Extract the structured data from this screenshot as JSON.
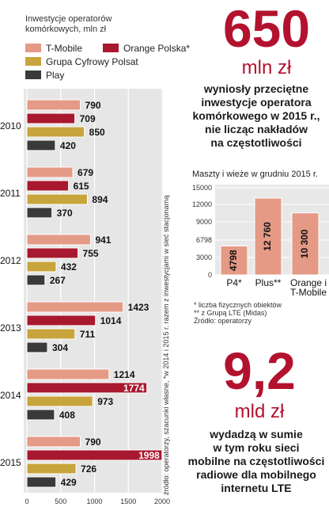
{
  "chart_data": [
    {
      "type": "bar",
      "title": "Inwestycje operatorów komórkowych, mln zł",
      "categories": [
        "2010",
        "2011",
        "2012",
        "2013",
        "2014",
        "2015"
      ],
      "series": [
        {
          "name": "T-Mobile",
          "values": [
            790,
            679,
            941,
            1423,
            1214,
            790
          ]
        },
        {
          "name": "Orange Polska*",
          "values": [
            709,
            615,
            755,
            1014,
            1774,
            1998
          ]
        },
        {
          "name": "Grupa Cyfrowy Polsat",
          "values": [
            850,
            894,
            432,
            711,
            973,
            726
          ]
        },
        {
          "name": "Play",
          "values": [
            420,
            370,
            267,
            304,
            408,
            429
          ]
        }
      ],
      "xlim": [
        0,
        2000
      ],
      "x_ticks": [
        "0",
        "500",
        "1000",
        "1500",
        "2000"
      ],
      "colors": [
        "#e59a86",
        "#a8182f",
        "#c8a43c",
        "#3a3a3a"
      ],
      "legend": "top-left"
    },
    {
      "type": "bar",
      "title": "Maszty i wieże w grudniu 2015 r.",
      "categories": [
        "P4*",
        "Plus**",
        "Orange i T-Mobile"
      ],
      "values": [
        4798,
        12760,
        10300
      ],
      "value_labels": [
        "4798",
        "12 760",
        "10 300"
      ],
      "ylim": [
        0,
        15000
      ],
      "y_ticks": [
        "15000",
        "12000",
        "9000",
        "6798",
        "3000",
        "0"
      ],
      "color": "#e59a86"
    }
  ],
  "highlight1": {
    "number": "650",
    "unit": "mln zł",
    "line1": "wyniosły przeciętne",
    "line2": "inwestycje operatora",
    "line3": "komórkowego w 2015 r.,",
    "line4": "nie licząc nakładów",
    "line5": "na częstotliwości"
  },
  "footnotes": {
    "f1": "* liczba fizycznych obiektów",
    "f2": "** z Grupą LTE (Midas)",
    "f3": "Źródło: operatorzy"
  },
  "highlight2": {
    "number": "9,2",
    "unit": "mld zł",
    "line1": "wydadzą w sumie",
    "line2": "w tym roku sieci",
    "line3": "mobilne na częstotliwości",
    "line4": "radiowe dla mobilnego",
    "line5": "internetu LTE"
  },
  "source_note": "źródło: operatorzy, szacunki własne, *w 2014 i 2015 r. razem z inwestycjami w sieć stacjonarną"
}
